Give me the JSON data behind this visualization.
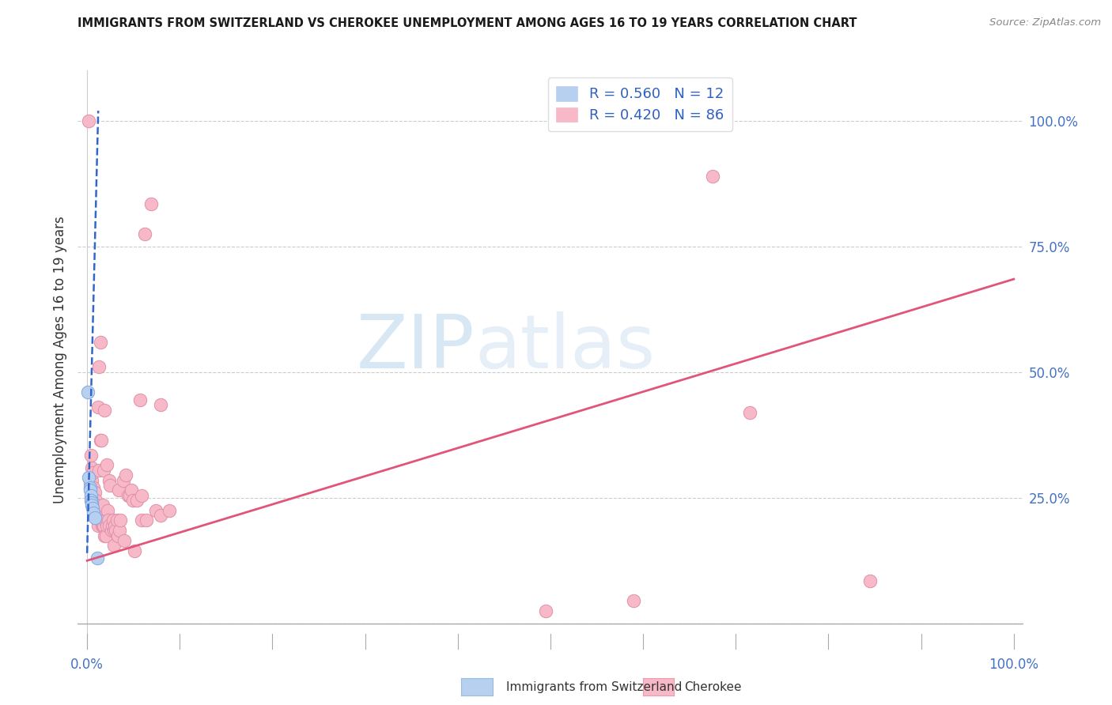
{
  "title": "IMMIGRANTS FROM SWITZERLAND VS CHEROKEE UNEMPLOYMENT AMONG AGES 16 TO 19 YEARS CORRELATION CHART",
  "source": "Source: ZipAtlas.com",
  "ylabel": "Unemployment Among Ages 16 to 19 years",
  "legend1_label": "R = 0.560   N = 12",
  "legend2_label": "R = 0.420   N = 86",
  "legend1_color": "#b8d0f0",
  "legend2_color": "#f7b8c8",
  "trendline1_color": "#3366cc",
  "trendline2_color": "#e05578",
  "watermark_zip": "ZIP",
  "watermark_atlas": "atlas",
  "ytick_labels": [
    "100.0%",
    "75.0%",
    "50.0%",
    "25.0%"
  ],
  "ytick_values": [
    1.0,
    0.75,
    0.5,
    0.25
  ],
  "xtick_labels": [
    "0.0%",
    "100.0%"
  ],
  "xtick_values": [
    0.0,
    1.0
  ],
  "bottom_legend1": "Immigrants from Switzerland",
  "bottom_legend2": "Cherokee",
  "swiss_points": [
    [
      0.001,
      0.46
    ],
    [
      0.002,
      0.29
    ],
    [
      0.003,
      0.27
    ],
    [
      0.003,
      0.265
    ],
    [
      0.004,
      0.255
    ],
    [
      0.004,
      0.245
    ],
    [
      0.005,
      0.24
    ],
    [
      0.005,
      0.235
    ],
    [
      0.006,
      0.23
    ],
    [
      0.007,
      0.22
    ],
    [
      0.008,
      0.21
    ],
    [
      0.011,
      0.13
    ]
  ],
  "cherokee_points": [
    [
      0.002,
      1.0
    ],
    [
      0.003,
      0.29
    ],
    [
      0.003,
      0.28
    ],
    [
      0.004,
      0.335
    ],
    [
      0.005,
      0.31
    ],
    [
      0.005,
      0.285
    ],
    [
      0.006,
      0.3
    ],
    [
      0.007,
      0.27
    ],
    [
      0.007,
      0.255
    ],
    [
      0.008,
      0.26
    ],
    [
      0.008,
      0.235
    ],
    [
      0.009,
      0.245
    ],
    [
      0.009,
      0.225
    ],
    [
      0.01,
      0.235
    ],
    [
      0.01,
      0.215
    ],
    [
      0.011,
      0.225
    ],
    [
      0.011,
      0.205
    ],
    [
      0.012,
      0.43
    ],
    [
      0.012,
      0.225
    ],
    [
      0.012,
      0.195
    ],
    [
      0.013,
      0.51
    ],
    [
      0.013,
      0.305
    ],
    [
      0.013,
      0.225
    ],
    [
      0.014,
      0.56
    ],
    [
      0.014,
      0.365
    ],
    [
      0.014,
      0.225
    ],
    [
      0.014,
      0.205
    ],
    [
      0.015,
      0.365
    ],
    [
      0.015,
      0.225
    ],
    [
      0.015,
      0.205
    ],
    [
      0.016,
      0.225
    ],
    [
      0.016,
      0.195
    ],
    [
      0.017,
      0.235
    ],
    [
      0.017,
      0.195
    ],
    [
      0.018,
      0.305
    ],
    [
      0.018,
      0.195
    ],
    [
      0.019,
      0.425
    ],
    [
      0.019,
      0.205
    ],
    [
      0.019,
      0.175
    ],
    [
      0.02,
      0.205
    ],
    [
      0.02,
      0.175
    ],
    [
      0.021,
      0.315
    ],
    [
      0.021,
      0.195
    ],
    [
      0.022,
      0.225
    ],
    [
      0.023,
      0.205
    ],
    [
      0.024,
      0.285
    ],
    [
      0.024,
      0.195
    ],
    [
      0.025,
      0.275
    ],
    [
      0.026,
      0.185
    ],
    [
      0.027,
      0.195
    ],
    [
      0.028,
      0.205
    ],
    [
      0.029,
      0.185
    ],
    [
      0.029,
      0.155
    ],
    [
      0.03,
      0.195
    ],
    [
      0.031,
      0.185
    ],
    [
      0.032,
      0.205
    ],
    [
      0.033,
      0.175
    ],
    [
      0.034,
      0.265
    ],
    [
      0.035,
      0.185
    ],
    [
      0.036,
      0.205
    ],
    [
      0.039,
      0.285
    ],
    [
      0.04,
      0.165
    ],
    [
      0.042,
      0.295
    ],
    [
      0.044,
      0.255
    ],
    [
      0.046,
      0.255
    ],
    [
      0.048,
      0.265
    ],
    [
      0.049,
      0.245
    ],
    [
      0.051,
      0.145
    ],
    [
      0.054,
      0.245
    ],
    [
      0.057,
      0.445
    ],
    [
      0.059,
      0.255
    ],
    [
      0.059,
      0.205
    ],
    [
      0.062,
      0.775
    ],
    [
      0.064,
      0.205
    ],
    [
      0.069,
      0.835
    ],
    [
      0.074,
      0.225
    ],
    [
      0.079,
      0.435
    ],
    [
      0.079,
      0.215
    ],
    [
      0.089,
      0.225
    ],
    [
      0.495,
      0.025
    ],
    [
      0.59,
      0.045
    ],
    [
      0.615,
      1.0
    ],
    [
      0.635,
      1.0
    ],
    [
      0.675,
      0.89
    ],
    [
      0.715,
      0.42
    ],
    [
      0.845,
      0.085
    ]
  ],
  "trendline1_x": [
    0.0,
    0.012
  ],
  "trendline1_y": [
    0.14,
    1.02
  ],
  "trendline2_x": [
    0.0,
    1.0
  ],
  "trendline2_y": [
    0.125,
    0.685
  ],
  "xlim": [
    -0.01,
    1.01
  ],
  "ylim": [
    -0.05,
    1.1
  ],
  "grid_yticks": [
    0.0,
    0.25,
    0.5,
    0.75,
    1.0
  ]
}
